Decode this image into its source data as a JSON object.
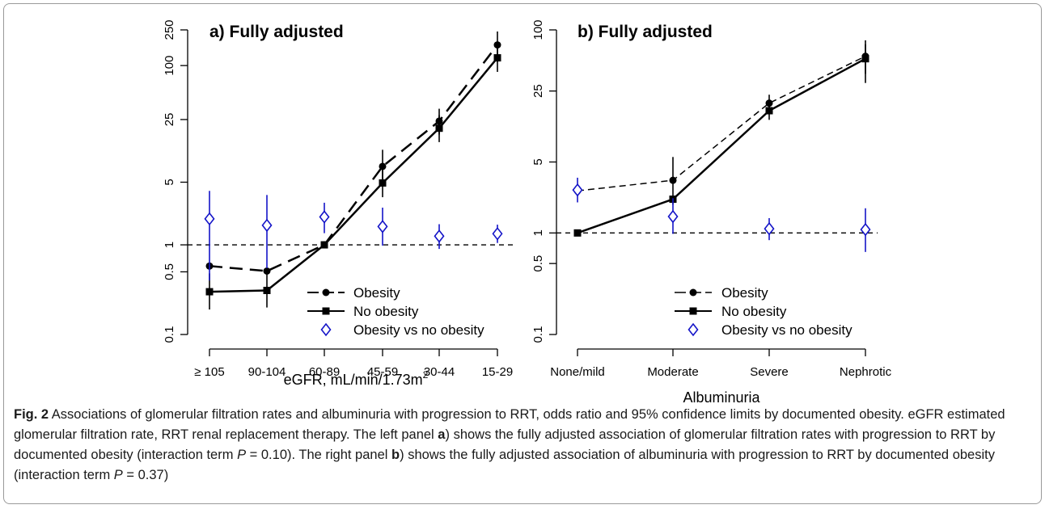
{
  "caption": {
    "label": "Fig. 2",
    "seg1": " Associations of glomerular filtration rates and albuminuria with progression to RRT, odds ratio and 95% confidence limits by documented obesity. eGFR estimated glomerular filtration rate, RRT renal replacement therapy. The left panel ",
    "bold_a": "a",
    "seg2": ") shows the fully adjusted association of glomerular filtration rates with progression to RRT by documented obesity (interaction term ",
    "p1": "P",
    "seg3": " = 0.10). The right panel ",
    "bold_b": "b",
    "seg4": ") shows the fully adjusted association of albuminuria with progression to RRT by documented obesity (interaction term ",
    "p2": "P",
    "seg5": " = 0.37)"
  },
  "colors": {
    "obesity": "#000000",
    "no_obesity": "#000000",
    "ratio": "#1414c8",
    "reference": "#000000"
  },
  "chart_data": [
    {
      "type": "line",
      "title": "a) Fully adjusted",
      "xlabel": "eGFR, mL/min/1.73m",
      "xlabel_sup": "2",
      "ylabel": "",
      "yscale": "log",
      "ylim": [
        0.1,
        250
      ],
      "yticks": [
        0.1,
        0.5,
        1,
        5,
        25,
        100,
        250
      ],
      "ytick_labels": [
        "0.1",
        "0.5",
        "1",
        "5",
        "25",
        "100",
        "250"
      ],
      "categories": [
        "≥ 105",
        "90-104",
        "60-89",
        "45-59",
        "30-44",
        "15-29"
      ],
      "reference_line": 1,
      "legend_placement": "bottom-right",
      "series": [
        {
          "name": "Obesity",
          "style": "long-dash",
          "marker": "circle",
          "values": [
            0.58,
            0.51,
            1.0,
            7.5,
            24,
            170
          ],
          "ci_low": [
            null,
            null,
            null,
            5.0,
            17,
            110
          ],
          "ci_high": [
            null,
            null,
            null,
            11.5,
            33,
            240
          ]
        },
        {
          "name": "No obesity",
          "style": "solid",
          "marker": "square",
          "values": [
            0.3,
            0.31,
            1.0,
            4.9,
            20,
            122
          ],
          "ci_low": [
            0.19,
            0.2,
            null,
            3.4,
            14,
            85
          ],
          "ci_high": [
            0.48,
            0.5,
            null,
            7.0,
            28,
            175
          ]
        },
        {
          "name": "Obesity vs no obesity",
          "style": "none",
          "marker": "open-diamond",
          "values": [
            1.95,
            1.65,
            2.05,
            1.6,
            1.25,
            1.33
          ],
          "ci_low": [
            0.4,
            0.55,
            1.35,
            0.98,
            0.9,
            1.05
          ],
          "ci_high": [
            4.0,
            3.6,
            2.95,
            2.6,
            1.7,
            1.68
          ]
        }
      ]
    },
    {
      "type": "line",
      "title": "b) Fully adjusted",
      "xlabel": "Albuminuria",
      "ylabel": "",
      "yscale": "log",
      "ylim": [
        0.1,
        100
      ],
      "yticks": [
        0.1,
        0.5,
        1,
        5,
        25,
        100
      ],
      "ytick_labels": [
        "0.1",
        "0.5",
        "1",
        "5",
        "25",
        "100"
      ],
      "categories": [
        "None/mild",
        "Moderate",
        "Severe",
        "Nephrotic"
      ],
      "reference_line": 1,
      "legend_placement": "bottom-right",
      "series": [
        {
          "name": "Obesity",
          "style": "dashed",
          "marker": "circle",
          "values": [
            2.6,
            3.3,
            19,
            55
          ],
          "ci_low": [
            null,
            1.9,
            15,
            30
          ],
          "ci_high": [
            null,
            5.6,
            23,
            79
          ]
        },
        {
          "name": "No obesity",
          "style": "solid",
          "marker": "square",
          "values": [
            1.0,
            2.15,
            16,
            52
          ],
          "ci_low": [
            null,
            null,
            13,
            37
          ],
          "ci_high": [
            null,
            null,
            20,
            72
          ]
        },
        {
          "name": "Obesity vs no obesity",
          "style": "none",
          "marker": "open-diamond",
          "values": [
            2.65,
            1.45,
            1.1,
            1.08
          ],
          "ci_low": [
            2.0,
            0.98,
            0.85,
            0.65
          ],
          "ci_high": [
            3.5,
            2.2,
            1.4,
            1.75
          ]
        }
      ]
    }
  ]
}
